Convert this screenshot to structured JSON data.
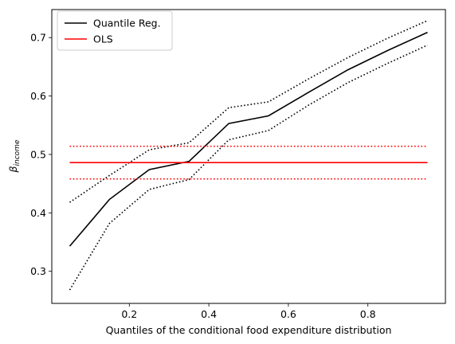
{
  "chart_data": {
    "type": "line",
    "xlabel": "Quantiles of the conditional food expenditure distribution",
    "ylabel_base": "β",
    "ylabel_sub": "income",
    "xlim": [
      0.005,
      0.995
    ],
    "ylim": [
      0.245,
      0.748
    ],
    "xticks": [
      0.2,
      0.4,
      0.6,
      0.8
    ],
    "xtick_labels": [
      "0.2",
      "0.4",
      "0.6",
      "0.8"
    ],
    "yticks": [
      0.3,
      0.4,
      0.5,
      0.6,
      0.7
    ],
    "ytick_labels": [
      "0.3",
      "0.4",
      "0.5",
      "0.6",
      "0.7"
    ],
    "grid": false,
    "legend_position": "top-left",
    "legend": [
      {
        "label": "Quantile Reg.",
        "color": "#000000"
      },
      {
        "label": "OLS",
        "color": "#ff0000"
      }
    ],
    "series": [
      {
        "name": "Quantile Reg.",
        "color": "#000000",
        "style": "solid",
        "x": [
          0.05,
          0.15,
          0.25,
          0.35,
          0.45,
          0.55,
          0.65,
          0.75,
          0.85,
          0.95
        ],
        "y": [
          0.343,
          0.423,
          0.474,
          0.488,
          0.553,
          0.566,
          0.606,
          0.645,
          0.678,
          0.709
        ]
      },
      {
        "name": "Quantile Reg. upper bound",
        "color": "#000000",
        "style": "dotted",
        "x": [
          0.05,
          0.15,
          0.25,
          0.35,
          0.45,
          0.55,
          0.65,
          0.75,
          0.85,
          0.95
        ],
        "y": [
          0.418,
          0.464,
          0.508,
          0.52,
          0.58,
          0.59,
          0.629,
          0.666,
          0.699,
          0.729
        ]
      },
      {
        "name": "Quantile Reg. lower bound",
        "color": "#000000",
        "style": "dotted",
        "x": [
          0.05,
          0.15,
          0.25,
          0.35,
          0.45,
          0.55,
          0.65,
          0.75,
          0.85,
          0.95
        ],
        "y": [
          0.268,
          0.382,
          0.44,
          0.457,
          0.525,
          0.541,
          0.584,
          0.623,
          0.656,
          0.687
        ]
      },
      {
        "name": "OLS",
        "color": "#ff0000",
        "style": "solid",
        "x": [
          0.05,
          0.95
        ],
        "y": [
          0.486,
          0.486
        ]
      },
      {
        "name": "OLS upper bound",
        "color": "#ff0000",
        "style": "dotted",
        "x": [
          0.05,
          0.95
        ],
        "y": [
          0.514,
          0.514
        ]
      },
      {
        "name": "OLS lower bound",
        "color": "#ff0000",
        "style": "dotted",
        "x": [
          0.05,
          0.95
        ],
        "y": [
          0.458,
          0.458
        ]
      }
    ]
  }
}
